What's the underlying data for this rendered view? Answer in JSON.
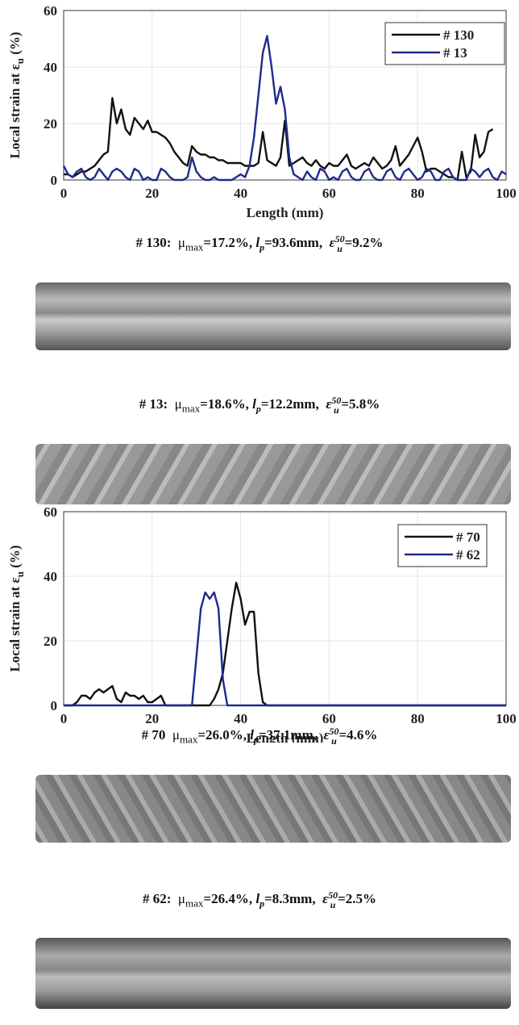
{
  "chart_data": [
    {
      "type": "line",
      "xlabel": "Length (mm)",
      "ylabel": "Local strain at ε",
      "ylabel_sub": "u",
      "ylabel_unit": " (%)",
      "x": [
        0,
        1,
        2,
        3,
        4,
        5,
        6,
        7,
        8,
        9,
        10,
        11,
        12,
        13,
        14,
        15,
        16,
        17,
        18,
        19,
        20,
        21,
        22,
        23,
        24,
        25,
        26,
        27,
        28,
        29,
        30,
        31,
        32,
        33,
        34,
        35,
        36,
        37,
        38,
        39,
        40,
        41,
        42,
        43,
        44,
        45,
        46,
        47,
        48,
        49,
        50,
        51,
        52,
        53,
        54,
        55,
        56,
        57,
        58,
        59,
        60,
        61,
        62,
        63,
        64,
        65,
        66,
        67,
        68,
        69,
        70,
        71,
        72,
        73,
        74,
        75,
        76,
        77,
        78,
        79,
        80,
        81,
        82,
        83,
        84,
        85,
        86,
        87,
        88,
        89,
        90,
        91,
        92,
        93,
        94,
        95,
        96,
        97,
        98,
        99,
        100
      ],
      "series": [
        {
          "name": "# 130",
          "color": "#111111",
          "values": [
            2,
            2,
            1,
            2,
            3,
            3,
            4,
            5,
            7,
            9,
            10,
            29,
            20,
            25,
            18,
            16,
            22,
            20,
            18,
            21,
            17,
            17,
            16,
            15,
            13,
            10,
            8,
            6,
            5,
            12,
            10,
            9,
            9,
            8,
            8,
            7,
            7,
            6,
            6,
            6,
            6,
            5,
            5,
            5,
            6,
            17,
            7,
            6,
            5,
            8,
            21,
            5,
            6,
            7,
            8,
            6,
            5,
            7,
            5,
            4,
            6,
            5,
            5,
            7,
            9,
            5,
            4,
            5,
            6,
            5,
            8,
            6,
            4,
            5,
            7,
            12,
            5,
            7,
            9,
            12,
            15,
            10,
            3,
            4,
            4,
            3,
            2,
            1,
            1,
            0,
            10,
            1,
            3,
            16,
            8,
            10,
            17,
            18,
            null,
            null,
            null
          ]
        },
        {
          "name": "# 13",
          "color": "#1f2a8c",
          "values": [
            5,
            2,
            1,
            3,
            4,
            1,
            0,
            1,
            4,
            2,
            0,
            3,
            4,
            3,
            1,
            0,
            4,
            3,
            0,
            1,
            0,
            0,
            4,
            3,
            1,
            0,
            0,
            0,
            1,
            8,
            3,
            1,
            0,
            0,
            1,
            0,
            0,
            0,
            0,
            1,
            2,
            1,
            5,
            15,
            30,
            45,
            51,
            40,
            27,
            33,
            25,
            8,
            2,
            1,
            0,
            3,
            1,
            0,
            4,
            3,
            0,
            1,
            0,
            3,
            4,
            1,
            0,
            0,
            3,
            4,
            1,
            0,
            0,
            3,
            4,
            1,
            0,
            3,
            4,
            2,
            0,
            1,
            4,
            3,
            0,
            0,
            3,
            4,
            1,
            0,
            0,
            0,
            4,
            3,
            1,
            3,
            4,
            1,
            0,
            3,
            2
          ]
        }
      ],
      "xlim": [
        0,
        100
      ],
      "xticks": [
        0,
        20,
        40,
        60,
        80,
        100
      ],
      "ylim": [
        0,
        60
      ],
      "yticks": [
        0,
        20,
        40,
        60
      ],
      "grid": true,
      "legend": "top-right"
    },
    {
      "type": "line",
      "xlabel": "Length (mm)",
      "ylabel": "Local strain at ε",
      "ylabel_sub": "u",
      "ylabel_unit": " (%)",
      "x": [
        0,
        1,
        2,
        3,
        4,
        5,
        6,
        7,
        8,
        9,
        10,
        11,
        12,
        13,
        14,
        15,
        16,
        17,
        18,
        19,
        20,
        21,
        22,
        23,
        24,
        25,
        26,
        27,
        28,
        29,
        30,
        31,
        32,
        33,
        34,
        35,
        36,
        37,
        38,
        39,
        40,
        41,
        42,
        43,
        44,
        45,
        46,
        47,
        48,
        49,
        50,
        51,
        52,
        53,
        54,
        55,
        56,
        57,
        58,
        59,
        60,
        61,
        62,
        63,
        64,
        65,
        66,
        67,
        68,
        69,
        70,
        71,
        72,
        73,
        74,
        75,
        76,
        77,
        78,
        79,
        80,
        81,
        82,
        83,
        84,
        85,
        86,
        87,
        88,
        89,
        90,
        91,
        92,
        93,
        94,
        95,
        96,
        97,
        98,
        99,
        100
      ],
      "series": [
        {
          "name": "# 70",
          "color": "#111111",
          "values": [
            0,
            0,
            0,
            1,
            3,
            3,
            2,
            4,
            5,
            4,
            5,
            6,
            2,
            1,
            4,
            3,
            3,
            2,
            3,
            1,
            1,
            2,
            3,
            0,
            0,
            0,
            0,
            0,
            0,
            0,
            0,
            0,
            0,
            0,
            2,
            5,
            10,
            20,
            30,
            38,
            33,
            25,
            29,
            29,
            10,
            1,
            0,
            0,
            0,
            0,
            0,
            0,
            0,
            0,
            0,
            0,
            0,
            0,
            0,
            0,
            0,
            0,
            0,
            0,
            0,
            0,
            0,
            0,
            0,
            0,
            0,
            0,
            0,
            0,
            0,
            0,
            0,
            0,
            0,
            0,
            0,
            0,
            0,
            0,
            0,
            0,
            0,
            0,
            0,
            0,
            0,
            0,
            0,
            0,
            0,
            0,
            0,
            0,
            0,
            0,
            0
          ]
        },
        {
          "name": "# 62",
          "color": "#1f2a8c",
          "values": [
            0,
            0,
            0,
            0,
            0,
            0,
            0,
            0,
            0,
            0,
            0,
            0,
            0,
            0,
            0,
            0,
            0,
            0,
            0,
            0,
            0,
            0,
            0,
            0,
            0,
            0,
            0,
            0,
            0,
            0,
            15,
            30,
            35,
            33,
            35,
            30,
            8,
            0,
            0,
            0,
            0,
            0,
            0,
            0,
            0,
            0,
            0,
            0,
            0,
            0,
            0,
            0,
            0,
            0,
            0,
            0,
            0,
            0,
            0,
            0,
            0,
            0,
            0,
            0,
            0,
            0,
            0,
            0,
            0,
            0,
            0,
            0,
            0,
            0,
            0,
            0,
            0,
            0,
            0,
            0,
            0,
            0,
            0,
            0,
            0,
            0,
            0,
            0,
            0,
            0,
            0,
            0,
            0,
            0,
            0,
            0,
            0,
            0,
            0,
            0,
            0
          ]
        }
      ],
      "xlim": [
        0,
        100
      ],
      "xticks": [
        0,
        20,
        40,
        60,
        80,
        100
      ],
      "ylim": [
        0,
        60
      ],
      "yticks": [
        0,
        20,
        40,
        60
      ],
      "grid": true,
      "legend": "top-right"
    }
  ],
  "captions": [
    {
      "id": "# 130:",
      "mu": "μ",
      "mu_sub": "max",
      "mu_val": "=17.2%,",
      "lp": "l",
      "lp_sub": "p",
      "lp_val": "=93.6mm,",
      "eps": "ε",
      "eps_sub": "u",
      "eps_sup": "50",
      "eps_val": "=9.2%"
    },
    {
      "id": "# 13:",
      "mu": "μ",
      "mu_sub": "max",
      "mu_val": "=18.6%,",
      "lp": "l",
      "lp_sub": "p",
      "lp_val": "=12.2mm,",
      "eps": "ε",
      "eps_sub": "u",
      "eps_sup": "50",
      "eps_val": "=5.8%"
    },
    {
      "id": "# 70",
      "mu": "μ",
      "mu_sub": "max",
      "mu_val": "=26.0%,",
      "lp": "l",
      "lp_sub": "p",
      "lp_val": "=37.1mm,",
      "eps": "ε",
      "eps_sub": "u",
      "eps_sup": "50",
      "eps_val": "=4.6%"
    },
    {
      "id": "# 62:",
      "mu": "μ",
      "mu_sub": "max",
      "mu_val": "=26.4%,",
      "lp": "l",
      "lp_sub": "p",
      "lp_val": "=8.3mm,",
      "eps": "ε",
      "eps_sub": "u",
      "eps_sup": "50",
      "eps_val": "=2.5%"
    }
  ]
}
